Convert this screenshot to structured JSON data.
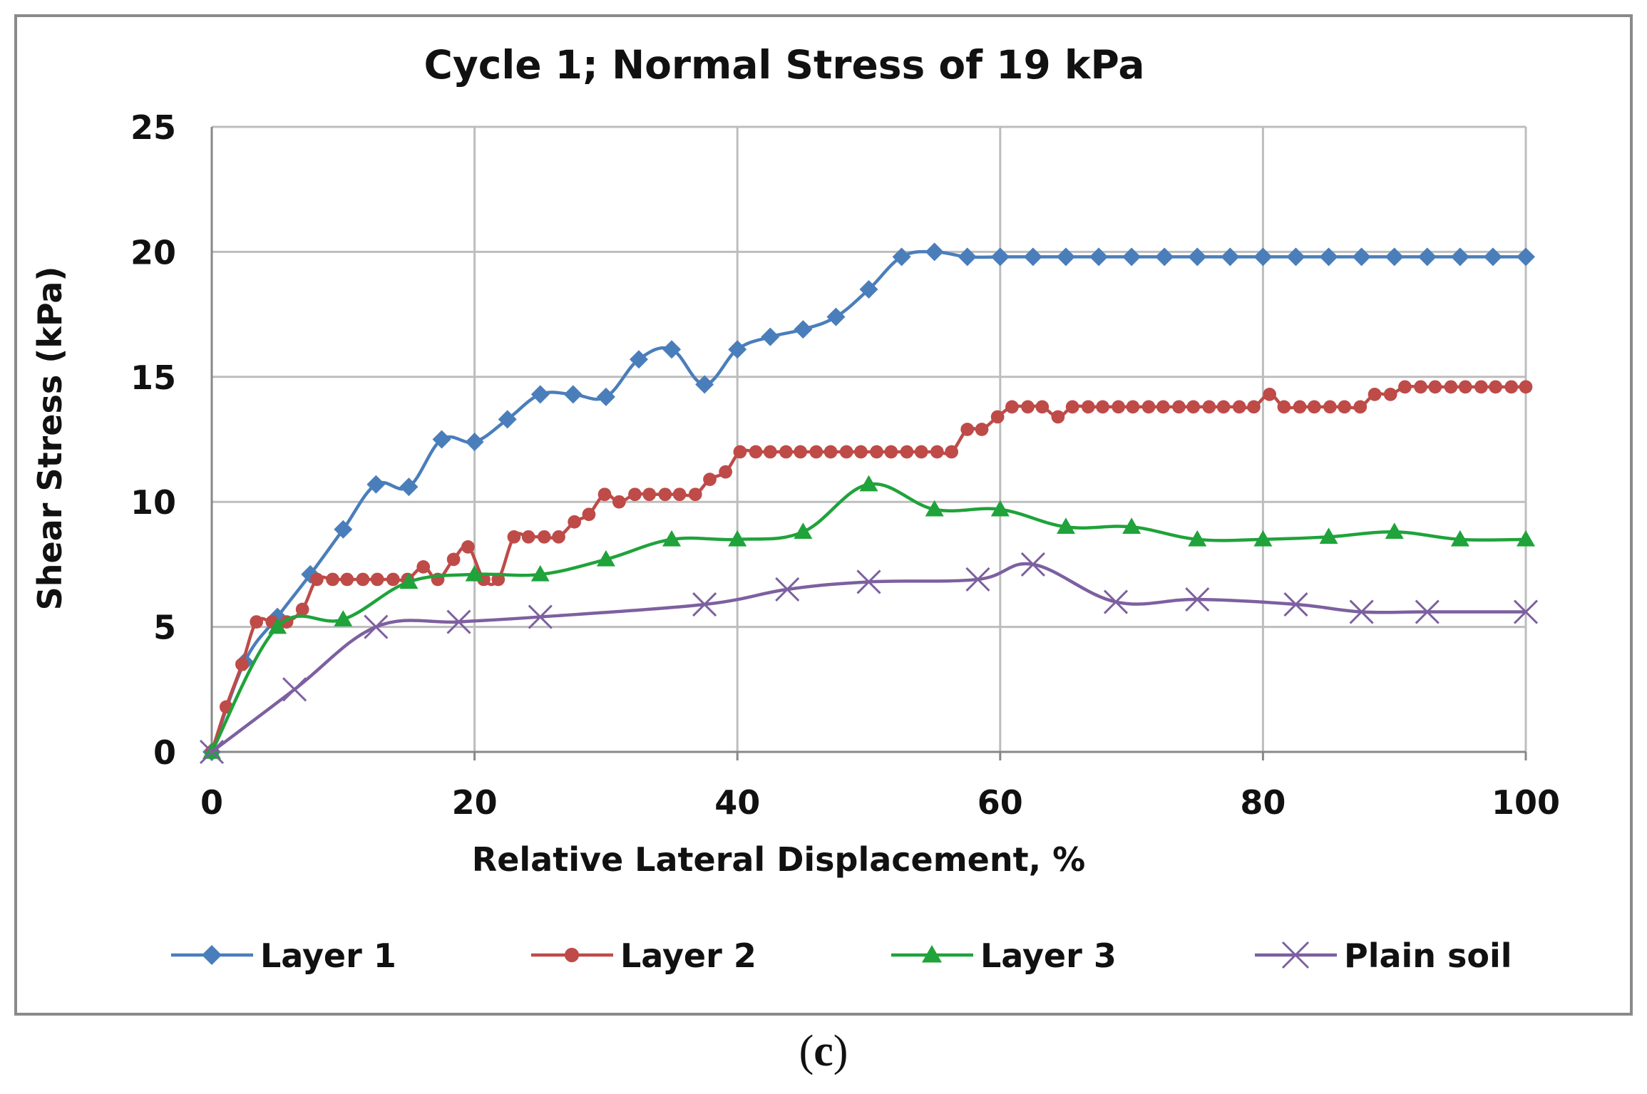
{
  "chart_data": {
    "type": "line",
    "title": "Cycle 1; Normal Stress of 19 kPa",
    "xlabel": "Relative Lateral Displacement, %",
    "ylabel": "Shear Stress (kPa)",
    "xlim": [
      0,
      100
    ],
    "ylim": [
      0,
      25
    ],
    "xticks": [
      0,
      20,
      40,
      60,
      80,
      100
    ],
    "yticks": [
      0,
      5,
      10,
      15,
      20,
      25
    ],
    "grid": true,
    "legend_position": "bottom",
    "series": [
      {
        "name": "Layer 1",
        "color": "#4a7ebb",
        "marker": "diamond",
        "x": [
          0,
          2.5,
          5,
          7.5,
          10,
          12.5,
          15,
          17.5,
          20,
          22.5,
          25,
          27.5,
          30,
          32.5,
          35,
          37.5,
          40,
          42.5,
          45,
          47.5,
          50,
          52.5,
          55,
          57.5,
          60,
          62.5,
          65,
          67.5,
          70,
          72.5,
          75,
          77.5,
          80,
          82.5,
          85,
          87.5,
          90,
          92.5,
          95,
          97.5,
          100
        ],
        "y": [
          0,
          3.6,
          5.4,
          7.1,
          8.9,
          10.7,
          10.6,
          12.5,
          12.4,
          13.3,
          14.3,
          14.3,
          14.2,
          15.7,
          16.1,
          14.7,
          16.1,
          16.6,
          16.9,
          17.4,
          18.5,
          19.8,
          20.0,
          19.8,
          19.8,
          19.8,
          19.8,
          19.8,
          19.8,
          19.8,
          19.8,
          19.8,
          19.8,
          19.8,
          19.8,
          19.8,
          19.8,
          19.8,
          19.8,
          19.8,
          19.8
        ]
      },
      {
        "name": "Layer 2",
        "color": "#be4b48",
        "marker": "circle",
        "x": [
          0,
          1.1,
          2.3,
          3.4,
          4.6,
          5.7,
          6.9,
          8.0,
          9.2,
          10.3,
          11.5,
          12.6,
          13.8,
          14.9,
          16.1,
          17.2,
          18.4,
          19.5,
          20.7,
          21.8,
          23.0,
          24.1,
          25.3,
          26.4,
          27.6,
          28.7,
          29.9,
          31.0,
          32.2,
          33.3,
          34.5,
          35.6,
          36.8,
          37.9,
          39.1,
          40.2,
          41.4,
          42.5,
          43.7,
          44.8,
          46.0,
          47.1,
          48.3,
          49.4,
          50.6,
          51.7,
          52.9,
          54.0,
          55.2,
          56.3,
          57.5,
          58.6,
          59.8,
          60.9,
          62.1,
          63.2,
          64.4,
          65.5,
          66.7,
          67.8,
          69.0,
          70.1,
          71.3,
          72.4,
          73.6,
          74.7,
          75.9,
          77.0,
          78.2,
          79.3,
          80.5,
          81.6,
          82.8,
          83.9,
          85.1,
          86.2,
          87.4,
          88.5,
          89.7,
          90.8,
          92.0,
          93.1,
          94.3,
          95.4,
          96.6,
          97.7,
          98.9,
          100
        ],
        "y": [
          0,
          1.8,
          3.5,
          5.2,
          5.2,
          5.2,
          5.7,
          6.9,
          6.9,
          6.9,
          6.9,
          6.9,
          6.9,
          6.9,
          7.4,
          6.9,
          7.7,
          8.2,
          6.9,
          6.9,
          8.6,
          8.6,
          8.6,
          8.6,
          9.2,
          9.5,
          10.3,
          10.0,
          10.3,
          10.3,
          10.3,
          10.3,
          10.3,
          10.9,
          11.2,
          12.0,
          12.0,
          12.0,
          12.0,
          12.0,
          12.0,
          12.0,
          12.0,
          12.0,
          12.0,
          12.0,
          12.0,
          12.0,
          12.0,
          12.0,
          12.9,
          12.9,
          13.4,
          13.8,
          13.8,
          13.8,
          13.4,
          13.8,
          13.8,
          13.8,
          13.8,
          13.8,
          13.8,
          13.8,
          13.8,
          13.8,
          13.8,
          13.8,
          13.8,
          13.8,
          14.3,
          13.8,
          13.8,
          13.8,
          13.8,
          13.8,
          13.8,
          14.3,
          14.3,
          14.6,
          14.6,
          14.6,
          14.6,
          14.6,
          14.6,
          14.6,
          14.6,
          14.6
        ]
      },
      {
        "name": "Layer 3",
        "color": "#1fa33a",
        "marker": "triangle",
        "x": [
          0,
          5,
          10,
          15,
          20,
          25,
          30,
          35,
          40,
          45,
          50,
          55,
          60,
          65,
          70,
          75,
          80,
          85,
          90,
          95,
          100
        ],
        "y": [
          0,
          5.0,
          5.3,
          6.8,
          7.1,
          7.1,
          7.7,
          8.5,
          8.5,
          8.8,
          10.7,
          9.7,
          9.7,
          9.0,
          9.0,
          8.5,
          8.5,
          8.6,
          8.8,
          8.5,
          8.5
        ]
      },
      {
        "name": "Plain soil",
        "color": "#7d60a0",
        "marker": "x",
        "x": [
          0,
          6.3,
          12.5,
          18.8,
          25,
          37.5,
          43.8,
          50,
          58.3,
          62.5,
          68.8,
          75,
          82.5,
          87.5,
          92.5,
          100
        ],
        "y": [
          0,
          2.5,
          5.0,
          5.2,
          5.4,
          5.9,
          6.5,
          6.8,
          6.9,
          7.5,
          6.0,
          6.1,
          5.9,
          5.6,
          5.6,
          5.6
        ]
      }
    ]
  },
  "panel_label": "c"
}
